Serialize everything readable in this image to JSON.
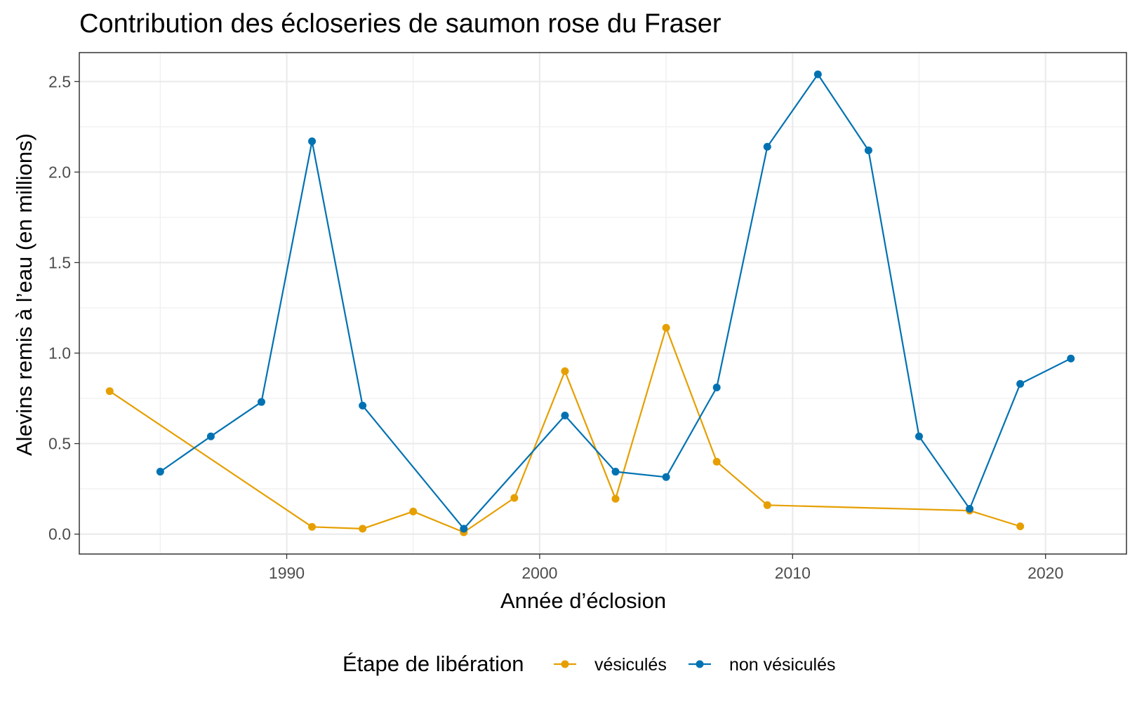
{
  "chart_data": {
    "type": "line",
    "title": "Contribution des écloseries de saumon rose du Fraser",
    "xlabel": "Année d’éclosion",
    "ylabel": "Alevins remis à l’eau (en millions)",
    "xlim": [
      1981.8,
      2023.2
    ],
    "ylim": [
      -0.11,
      2.66
    ],
    "x_ticks": [
      1990,
      2000,
      2010,
      2020
    ],
    "y_ticks": [
      0.0,
      0.5,
      1.0,
      1.5,
      2.0,
      2.5
    ],
    "x_tick_labels": [
      "1990",
      "2000",
      "2010",
      "2020"
    ],
    "y_tick_labels": [
      "0.0",
      "0.5",
      "1.0",
      "1.5",
      "2.0",
      "2.5"
    ],
    "grid": true,
    "legend": {
      "title": "Étape de libération",
      "position": "bottom"
    },
    "series": [
      {
        "name": "vésiculés",
        "color": "#E69F00",
        "x": [
          1983,
          1991,
          1993,
          1995,
          1997,
          1999,
          2001,
          2003,
          2005,
          2007,
          2009,
          2017,
          2019
        ],
        "y": [
          0.79,
          0.04,
          0.03,
          0.125,
          0.01,
          0.2,
          0.9,
          0.195,
          1.14,
          0.4,
          0.16,
          0.13,
          0.043
        ]
      },
      {
        "name": "non vésiculés",
        "color": "#0072B2",
        "x": [
          1985,
          1987,
          1989,
          1991,
          1993,
          1997,
          2001,
          2003,
          2005,
          2007,
          2009,
          2011,
          2013,
          2015,
          2017,
          2019,
          2021
        ],
        "y": [
          0.345,
          0.54,
          0.73,
          2.17,
          0.71,
          0.03,
          0.655,
          0.345,
          0.315,
          0.81,
          2.14,
          2.54,
          2.12,
          0.54,
          0.14,
          0.83,
          0.97
        ]
      }
    ]
  }
}
